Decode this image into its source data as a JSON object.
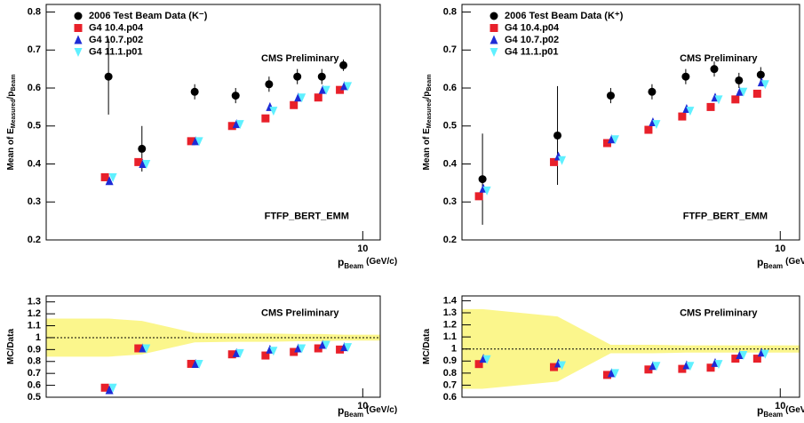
{
  "chart_data": [
    {
      "type": "scatter",
      "xscale": "log",
      "xlim": [
        1.78,
        11
      ],
      "xticks": [
        10
      ],
      "ylim": [
        0.2,
        0.82
      ],
      "yticks": [
        0.2,
        0.3,
        0.4,
        0.5,
        0.6,
        0.7,
        0.8
      ],
      "ylabel": [
        "Mean of E",
        "Measured",
        "/p",
        "Beam"
      ],
      "xlabel": [
        "p",
        "Beam",
        "(GeV/c)"
      ],
      "legend": "upper left",
      "annotations": [
        "CMS Preliminary",
        "FTFP_BERT_EMM"
      ],
      "x": [
        2.5,
        3,
        4,
        5,
        6,
        7,
        8,
        9
      ],
      "series": [
        {
          "name": "2006 Test Beam Data (K⁻)",
          "color": "#000000",
          "marker": "circle",
          "values": [
            0.63,
            0.44,
            0.59,
            0.58,
            0.61,
            0.63,
            0.63,
            0.66
          ],
          "errors": [
            0.1,
            0.06,
            0.02,
            0.02,
            0.02,
            0.02,
            0.02,
            0.015
          ]
        },
        {
          "name": "G4 10.4.p04",
          "color": "#e8202a",
          "marker": "square",
          "values": [
            0.365,
            0.405,
            0.46,
            0.5,
            0.52,
            0.555,
            0.575,
            0.595
          ]
        },
        {
          "name": "G4 10.7.p02",
          "color": "#1d2bd6",
          "marker": "triangle-up",
          "values": [
            0.355,
            0.4,
            0.46,
            0.505,
            0.55,
            0.575,
            0.595,
            0.605
          ]
        },
        {
          "name": "G4 11.1.p01",
          "color": "#5ff0ff",
          "marker": "triangle-down",
          "values": [
            0.365,
            0.4,
            0.46,
            0.505,
            0.54,
            0.575,
            0.595,
            0.605
          ]
        }
      ]
    },
    {
      "type": "scatter",
      "xscale": "log",
      "xlim": [
        1.79,
        11.1
      ],
      "xticks": [
        10
      ],
      "ylim": [
        0.2,
        0.82
      ],
      "yticks": [
        0.2,
        0.3,
        0.4,
        0.5,
        0.6,
        0.7,
        0.8
      ],
      "ylabel": [
        "Mean of E",
        "Measured",
        "/p",
        "Beam"
      ],
      "xlabel": [
        "p",
        "Beam",
        "(GeV/c)"
      ],
      "legend": "upper left",
      "annotations": [
        "CMS Preliminary",
        "FTFP_BERT_EMM"
      ],
      "x": [
        2,
        3,
        4,
        5,
        6,
        7,
        8,
        9
      ],
      "series": [
        {
          "name": "2006 Test Beam Data (K⁺)",
          "color": "#000000",
          "marker": "circle",
          "values": [
            0.36,
            0.475,
            0.58,
            0.59,
            0.63,
            0.65,
            0.62,
            0.635
          ],
          "errors": [
            0.12,
            0.13,
            0.02,
            0.02,
            0.02,
            0.02,
            0.02,
            0.02
          ]
        },
        {
          "name": "G4 10.4.p04",
          "color": "#e8202a",
          "marker": "square",
          "values": [
            0.315,
            0.405,
            0.455,
            0.49,
            0.525,
            0.55,
            0.57,
            0.585
          ]
        },
        {
          "name": "G4 10.7.p02",
          "color": "#1d2bd6",
          "marker": "triangle-up",
          "values": [
            0.335,
            0.42,
            0.465,
            0.51,
            0.545,
            0.575,
            0.59,
            0.615
          ]
        },
        {
          "name": "G4 11.1.p01",
          "color": "#5ff0ff",
          "marker": "triangle-down",
          "values": [
            0.33,
            0.41,
            0.465,
            0.505,
            0.54,
            0.57,
            0.59,
            0.61
          ]
        }
      ]
    },
    {
      "type": "scatter",
      "xscale": "log",
      "xlim": [
        1.78,
        11
      ],
      "xticks": [
        10
      ],
      "ylim": [
        0.5,
        1.35
      ],
      "yticks": [
        0.5,
        0.6,
        0.7,
        0.8,
        0.9,
        1,
        1.1,
        1.2,
        1.3
      ],
      "ylabel": [
        "MC/Data"
      ],
      "xlabel": [
        "p",
        "Beam",
        "(GeV/c)"
      ],
      "annotations": [
        "CMS Preliminary"
      ],
      "refline": 1,
      "band": {
        "color": "#fbf68c",
        "upper": [
          1.16,
          1.14,
          1.04,
          1.035,
          1.035,
          1.03,
          1.03,
          1.025
        ],
        "lower": [
          0.84,
          0.86,
          0.96,
          0.965,
          0.965,
          0.97,
          0.97,
          0.975
        ]
      },
      "x": [
        2.5,
        3,
        4,
        5,
        6,
        7,
        8,
        9
      ],
      "series": [
        {
          "name": "G4 10.4.p04",
          "color": "#e8202a",
          "marker": "square",
          "values": [
            0.58,
            0.91,
            0.78,
            0.86,
            0.85,
            0.88,
            0.91,
            0.9
          ]
        },
        {
          "name": "G4 10.7.p02",
          "color": "#1d2bd6",
          "marker": "triangle-up",
          "values": [
            0.56,
            0.91,
            0.78,
            0.87,
            0.9,
            0.91,
            0.94,
            0.92
          ]
        },
        {
          "name": "G4 11.1.p01",
          "color": "#5ff0ff",
          "marker": "triangle-down",
          "values": [
            0.58,
            0.91,
            0.78,
            0.87,
            0.89,
            0.91,
            0.94,
            0.92
          ]
        }
      ]
    },
    {
      "type": "scatter",
      "xscale": "log",
      "xlim": [
        1.79,
        11.1
      ],
      "xticks": [
        10
      ],
      "ylim": [
        0.6,
        1.44
      ],
      "yticks": [
        0.6,
        0.7,
        0.8,
        0.9,
        1,
        1.1,
        1.2,
        1.3,
        1.4
      ],
      "ylabel": [
        "MC/Data"
      ],
      "xlabel": [
        "p",
        "Beam",
        "(GeV/c)"
      ],
      "annotations": [
        "CMS Preliminary"
      ],
      "refline": 1,
      "band": {
        "color": "#fbf68c",
        "upper": [
          1.33,
          1.27,
          1.035,
          1.035,
          1.03,
          1.03,
          1.03,
          1.03
        ],
        "lower": [
          0.67,
          0.73,
          0.965,
          0.965,
          0.97,
          0.97,
          0.97,
          0.97
        ]
      },
      "x": [
        2,
        3,
        4,
        5,
        6,
        7,
        8,
        9
      ],
      "series": [
        {
          "name": "G4 10.4.p04",
          "color": "#e8202a",
          "marker": "square",
          "values": [
            0.875,
            0.85,
            0.785,
            0.83,
            0.835,
            0.845,
            0.92,
            0.92
          ]
        },
        {
          "name": "G4 10.7.p02",
          "color": "#1d2bd6",
          "marker": "triangle-up",
          "values": [
            0.92,
            0.88,
            0.8,
            0.86,
            0.865,
            0.885,
            0.95,
            0.97
          ]
        },
        {
          "name": "G4 11.1.p01",
          "color": "#5ff0ff",
          "marker": "triangle-down",
          "values": [
            0.915,
            0.865,
            0.8,
            0.86,
            0.86,
            0.875,
            0.95,
            0.96
          ]
        }
      ]
    }
  ]
}
